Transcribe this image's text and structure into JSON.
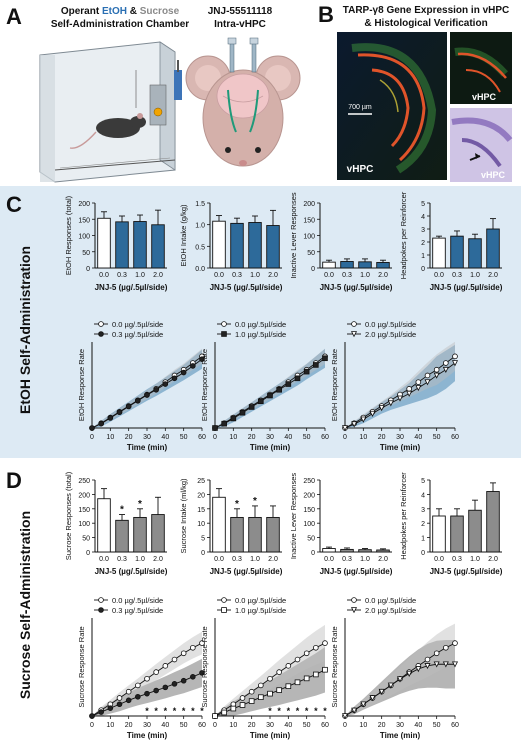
{
  "panelA": {
    "letter": "A",
    "title_line1_prefix": "Operant ",
    "title_etoh": "EtOH",
    "title_amp": " & ",
    "title_sucrose": "Sucrose",
    "title_line2": "Self-Administration Chamber",
    "drug_line1": "JNJ-55511118",
    "drug_line2": "Intra-vHPC"
  },
  "panelB": {
    "letter": "B",
    "title_line1": "TARP-γ8 Gene Expression in vHPC",
    "title_line2": "& Histological Verification",
    "scale": "700 µm",
    "label_main": "vHPC",
    "label_tr": "vHPC",
    "label_br": "vHPC"
  },
  "panelC": {
    "letter": "C",
    "side_label": "EtOH Self-Administration",
    "bg": "#ddeaf4",
    "bar_color": "#2d6a9a",
    "band_color": "#4a88b5"
  },
  "panelD": {
    "letter": "D",
    "side_label": "Sucrose Self-Administration",
    "bar_color": "#8c8c8c",
    "band_color": "#7a7a7a"
  },
  "shared": {
    "doses": [
      "0.0",
      "0.3",
      "1.0",
      "2.0"
    ],
    "bar_xlabel": "JNJ-5 (µg/.5µl/side)",
    "line_xlabel": "Time (min)",
    "time_ticks": [
      "0",
      "10",
      "20",
      "30",
      "40",
      "50",
      "60"
    ]
  },
  "chart_data": [
    {
      "id": "C1",
      "type": "bar",
      "categories": [
        "0.0",
        "0.3",
        "1.0",
        "2.0"
      ],
      "values": [
        153,
        142,
        143,
        133
      ],
      "errors": [
        20,
        18,
        20,
        45
      ],
      "ylabel": "EtOH Responses (total)",
      "yticks": [
        0,
        50,
        100,
        150,
        200
      ],
      "ylim": [
        0,
        200
      ],
      "xlabel": "JNJ-5 (µg/.5µl/side)"
    },
    {
      "id": "C2",
      "type": "bar",
      "categories": [
        "0.0",
        "0.3",
        "1.0",
        "2.0"
      ],
      "values": [
        1.08,
        1.03,
        1.05,
        0.98
      ],
      "errors": [
        0.13,
        0.12,
        0.15,
        0.35
      ],
      "ylabel": "EtOH Intake (g/kg)",
      "yticks": [
        0.0,
        0.5,
        1.0,
        1.5
      ],
      "ylim": [
        0,
        1.5
      ],
      "xlabel": "JNJ-5 (µg/.5µl/side)"
    },
    {
      "id": "C3",
      "type": "bar",
      "categories": [
        "0.0",
        "0.3",
        "1.0",
        "2.0"
      ],
      "values": [
        18,
        20,
        19,
        17
      ],
      "errors": [
        6,
        8,
        9,
        7
      ],
      "ylabel": "Inactive Lever Responses",
      "yticks": [
        0,
        50,
        100,
        150,
        200
      ],
      "ylim": [
        0,
        200
      ],
      "xlabel": "JNJ-5 (µg/.5µl/side)"
    },
    {
      "id": "C4",
      "type": "bar",
      "categories": [
        "0.0",
        "0.3",
        "1.0",
        "2.0"
      ],
      "values": [
        2.3,
        2.45,
        2.25,
        3.0
      ],
      "errors": [
        0.15,
        0.4,
        0.35,
        0.8
      ],
      "ylabel": "Headpokes per Reinforcer",
      "yticks": [
        0,
        1,
        2,
        3,
        4,
        5
      ],
      "ylim": [
        0,
        5
      ],
      "xlabel": "JNJ-5 (µg/.5µl/side)"
    },
    {
      "id": "C5",
      "type": "line",
      "x": [
        0,
        5,
        10,
        15,
        20,
        25,
        30,
        35,
        40,
        45,
        50,
        55,
        60
      ],
      "series": [
        {
          "name": "0.0 µg/.5µl/side",
          "marker": "circle",
          "values": [
            0,
            10,
            22,
            34,
            46,
            58,
            70,
            82,
            96,
            110,
            122,
            136,
            150
          ]
        },
        {
          "name": "0.3 µg/.5µl/side",
          "marker": "circle-filled",
          "values": [
            0,
            9,
            21,
            33,
            45,
            57,
            69,
            80,
            92,
            104,
            116,
            130,
            144
          ]
        }
      ],
      "band": [
        6,
        8,
        9,
        10,
        11,
        12,
        13,
        14,
        15,
        16,
        18,
        20
      ],
      "ylabel": "EtOH Response Rate",
      "xlabel": "Time (min)",
      "xlim": [
        0,
        60
      ],
      "ylim": [
        0,
        180
      ]
    },
    {
      "id": "C6",
      "type": "line",
      "x": [
        0,
        5,
        10,
        15,
        20,
        25,
        30,
        35,
        40,
        45,
        50,
        55,
        60
      ],
      "series": [
        {
          "name": "0.0 µg/.5µl/side",
          "marker": "circle",
          "values": [
            0,
            10,
            22,
            34,
            46,
            58,
            70,
            82,
            96,
            110,
            122,
            136,
            150
          ]
        },
        {
          "name": "1.0 µg/.5µl/side",
          "marker": "square-filled",
          "values": [
            0,
            9,
            20,
            32,
            44,
            56,
            68,
            80,
            92,
            104,
            118,
            132,
            146
          ]
        }
      ],
      "band": [
        6,
        8,
        9,
        10,
        11,
        12,
        13,
        14,
        15,
        16,
        18,
        20
      ],
      "ylabel": "EtOH Response Rate",
      "xlabel": "Time (min)",
      "xlim": [
        0,
        60
      ],
      "ylim": [
        0,
        180
      ]
    },
    {
      "id": "C7",
      "type": "line",
      "x": [
        0,
        5,
        10,
        15,
        20,
        25,
        30,
        35,
        40,
        45,
        50,
        55,
        60
      ],
      "series": [
        {
          "name": "0.0 µg/.5µl/side",
          "marker": "circle",
          "values": [
            0,
            10,
            22,
            34,
            46,
            58,
            70,
            82,
            96,
            110,
            122,
            136,
            150
          ]
        },
        {
          "name": "2.0 µg/.5µl/side",
          "marker": "triangle-down",
          "values": [
            0,
            8,
            18,
            30,
            42,
            52,
            62,
            72,
            84,
            96,
            110,
            122,
            136
          ]
        }
      ],
      "band": [
        5,
        8,
        10,
        12,
        14,
        18,
        22,
        28,
        34,
        40,
        40,
        38
      ],
      "ylabel": "EtOH Response Rate",
      "xlabel": "Time (min)",
      "xlim": [
        0,
        60
      ],
      "ylim": [
        0,
        180
      ]
    },
    {
      "id": "D1",
      "type": "bar",
      "categories": [
        "0.0",
        "0.3",
        "1.0",
        "2.0"
      ],
      "values": [
        185,
        110,
        120,
        130
      ],
      "errors": [
        35,
        20,
        30,
        60
      ],
      "stars": [
        false,
        true,
        true,
        false
      ],
      "ylabel": "Sucrose Responses (total)",
      "yticks": [
        0,
        50,
        100,
        150,
        200,
        250
      ],
      "ylim": [
        0,
        250
      ],
      "xlabel": "JNJ-5 (µg/.5µl/side)"
    },
    {
      "id": "D2",
      "type": "bar",
      "categories": [
        "0.0",
        "0.3",
        "1.0",
        "2.0"
      ],
      "values": [
        19,
        12,
        12,
        12
      ],
      "errors": [
        3,
        3,
        4,
        4
      ],
      "stars": [
        false,
        true,
        true,
        false
      ],
      "ylabel": "Sucrose Intake (ml/kg)",
      "yticks": [
        0,
        5,
        10,
        15,
        20,
        25
      ],
      "ylim": [
        0,
        25
      ],
      "xlabel": "JNJ-5 (µg/.5µl/side)"
    },
    {
      "id": "D3",
      "type": "bar",
      "categories": [
        "0.0",
        "0.3",
        "1.0",
        "2.0"
      ],
      "values": [
        12,
        9,
        8,
        7
      ],
      "errors": [
        5,
        5,
        4,
        4
      ],
      "ylabel": "Inactive Lever Responses",
      "yticks": [
        0,
        50,
        100,
        150,
        200,
        250
      ],
      "ylim": [
        0,
        250
      ],
      "xlabel": "JNJ-5 (µg/.5µl/side)"
    },
    {
      "id": "D4",
      "type": "bar",
      "categories": [
        "0.0",
        "0.3",
        "1.0",
        "2.0"
      ],
      "values": [
        2.5,
        2.5,
        2.9,
        4.2
      ],
      "errors": [
        0.5,
        0.5,
        0.7,
        0.6
      ],
      "ylabel": "Headpokes per Reinforcer",
      "yticks": [
        0,
        1,
        2,
        3,
        4,
        5
      ],
      "ylim": [
        0,
        5
      ],
      "xlabel": "JNJ-5 (µg/.5µl/side)"
    },
    {
      "id": "D5",
      "type": "line",
      "x": [
        0,
        5,
        10,
        15,
        20,
        25,
        30,
        35,
        40,
        45,
        50,
        55,
        60
      ],
      "series": [
        {
          "name": "0.0 µg/.5µl/side",
          "marker": "circle",
          "values": [
            0,
            15,
            30,
            46,
            62,
            78,
            95,
            112,
            128,
            144,
            160,
            174,
            186
          ]
        },
        {
          "name": "0.3 µg/.5µl/side",
          "marker": "circle-filled",
          "values": [
            0,
            10,
            20,
            30,
            40,
            49,
            57,
            65,
            73,
            82,
            90,
            100,
            110
          ]
        }
      ],
      "band": [
        10,
        14,
        18,
        20,
        22,
        24,
        26,
        28,
        30,
        32,
        34,
        36
      ],
      "stars_x": [
        30,
        35,
        40,
        45,
        50,
        55,
        60
      ],
      "ylabel": "Sucrose Response Rate",
      "xlabel": "Time (min)",
      "xlim": [
        0,
        60
      ],
      "ylim": [
        0,
        250
      ]
    },
    {
      "id": "D6",
      "type": "line",
      "x": [
        0,
        5,
        10,
        15,
        20,
        25,
        30,
        35,
        40,
        45,
        50,
        55,
        60
      ],
      "series": [
        {
          "name": "0.0 µg/.5µl/side",
          "marker": "circle",
          "values": [
            0,
            15,
            30,
            46,
            62,
            78,
            95,
            112,
            128,
            144,
            160,
            174,
            186
          ]
        },
        {
          "name": "1.0 µg/.5µl/side",
          "marker": "square",
          "values": [
            0,
            9,
            19,
            28,
            38,
            48,
            57,
            66,
            76,
            86,
            96,
            106,
            118
          ]
        }
      ],
      "band": [
        12,
        18,
        22,
        26,
        30,
        34,
        38,
        42,
        46,
        50,
        54,
        58
      ],
      "stars_x": [
        30,
        35,
        40,
        45,
        50,
        55,
        60
      ],
      "ylabel": "Sucrose Response Rate",
      "xlabel": "Time (min)",
      "xlim": [
        0,
        60
      ],
      "ylim": [
        0,
        250
      ]
    },
    {
      "id": "D7",
      "type": "line",
      "x": [
        0,
        5,
        10,
        15,
        20,
        25,
        30,
        35,
        40,
        45,
        50,
        55,
        60
      ],
      "series": [
        {
          "name": "0.0 µg/.5µl/side",
          "marker": "circle",
          "values": [
            0,
            15,
            30,
            46,
            62,
            78,
            95,
            112,
            128,
            144,
            160,
            174,
            186
          ]
        },
        {
          "name": "2.0 µg/.5µl/side",
          "marker": "triangle-down",
          "values": [
            0,
            14,
            30,
            46,
            62,
            78,
            94,
            108,
            120,
            128,
            132,
            132,
            132
          ]
        }
      ],
      "band": [
        10,
        14,
        20,
        26,
        32,
        38,
        44,
        50,
        56,
        60,
        62,
        62
      ],
      "ylabel": "Sucrose Response Rate",
      "xlabel": "Time (min)",
      "xlim": [
        0,
        60
      ],
      "ylim": [
        0,
        250
      ]
    }
  ]
}
